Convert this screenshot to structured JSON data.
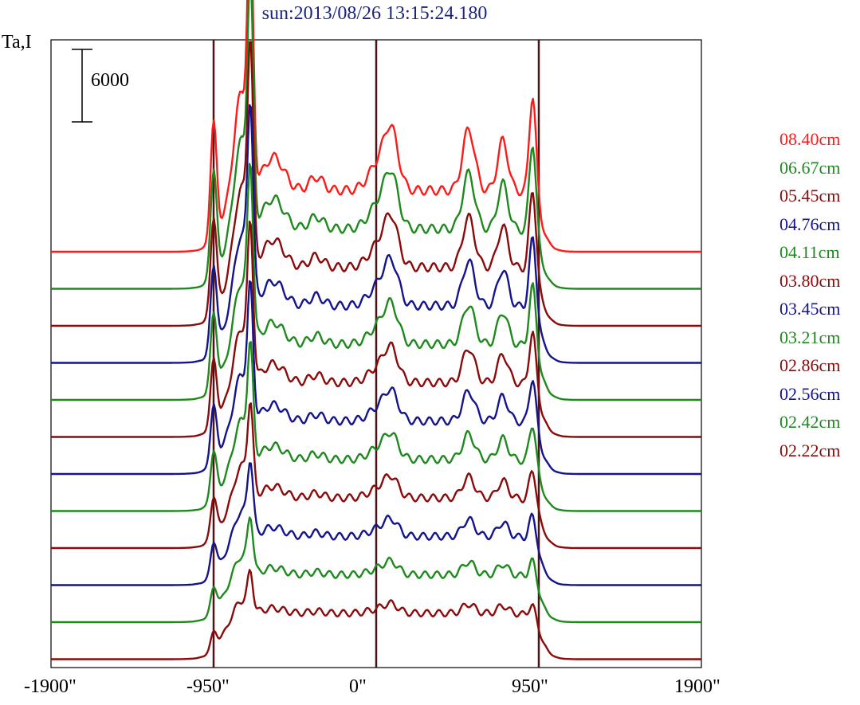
{
  "chart_data": {
    "type": "line",
    "title": "sun:2013/08/26 13:15:24.180",
    "ylabel": "Ta,I",
    "xlabel": "",
    "scale_bar_label": "6000",
    "scale_bar_value": 6000,
    "xlim": [
      -1900,
      1900
    ],
    "x_ticks": [
      "-1900\"",
      "-950\"",
      "0\"",
      "950\"",
      "1900\""
    ],
    "x_tick_values": [
      -1900,
      -950,
      0,
      950,
      1900
    ],
    "vertical_lines": [
      -950,
      0,
      950
    ],
    "legend_position": "right",
    "grid": false,
    "series": [
      {
        "name": "08.40cm",
        "color": "#ff1a1a"
      },
      {
        "name": "06.67cm",
        "color": "#1e8a1e"
      },
      {
        "name": "05.45cm",
        "color": "#8b0a0a"
      },
      {
        "name": "04.76cm",
        "color": "#14148c"
      },
      {
        "name": "04.11cm",
        "color": "#1e8a1e"
      },
      {
        "name": "03.80cm",
        "color": "#8b0a0a"
      },
      {
        "name": "03.45cm",
        "color": "#14148c"
      },
      {
        "name": "03.21cm",
        "color": "#1e8a1e"
      },
      {
        "name": "02.86cm",
        "color": "#8b0a0a"
      },
      {
        "name": "02.56cm",
        "color": "#14148c"
      },
      {
        "name": "02.42cm",
        "color": "#1e8a1e"
      },
      {
        "name": "02.22cm",
        "color": "#8b0a0a"
      }
    ]
  }
}
